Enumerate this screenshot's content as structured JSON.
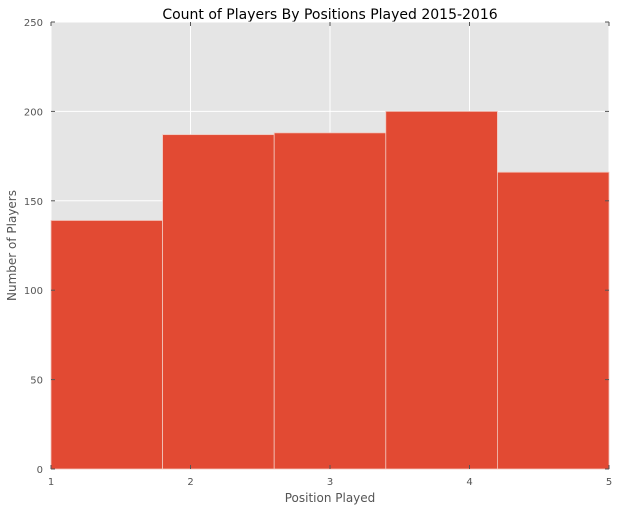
{
  "chart_data": {
    "type": "bar",
    "title": "Count of Players By Positions Played 2015-2016",
    "xlabel": "Position Played",
    "ylabel": "Number of Players",
    "xlim": [
      1,
      5
    ],
    "ylim": [
      0,
      250
    ],
    "xticks": [
      1,
      2,
      3,
      4,
      5
    ],
    "yticks": [
      0,
      50,
      100,
      150,
      200,
      250
    ],
    "grid": true,
    "colors": {
      "bar": "#E24A33",
      "background": "#E5E5E5",
      "grid": "#FFFFFF"
    },
    "bins": [
      {
        "start": 1.0,
        "end": 1.8,
        "value": 139
      },
      {
        "start": 1.8,
        "end": 2.6,
        "value": 187
      },
      {
        "start": 2.6,
        "end": 3.4,
        "value": 188
      },
      {
        "start": 3.4,
        "end": 4.2,
        "value": 200
      },
      {
        "start": 4.2,
        "end": 5.0,
        "value": 166
      }
    ]
  }
}
